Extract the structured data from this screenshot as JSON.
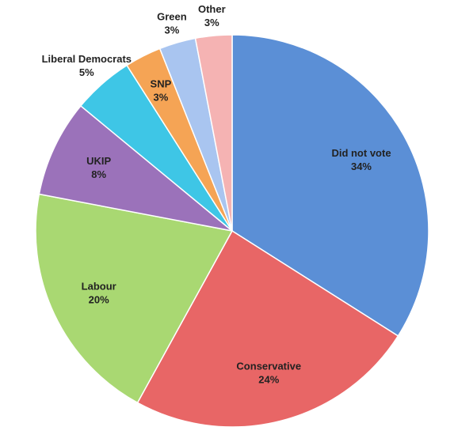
{
  "chart_data": {
    "type": "pie",
    "categories": [
      "Did not vote",
      "Conservative",
      "Labour",
      "UKIP",
      "Liberal Democrats",
      "SNP",
      "Green",
      "Other"
    ],
    "values": [
      34,
      24,
      20,
      8,
      5,
      3,
      3,
      3
    ],
    "value_labels": [
      "34%",
      "24%",
      "20%",
      "8%",
      "5%",
      "3%",
      "3%",
      "3%"
    ],
    "colors": [
      "#5b8fd6",
      "#e86666",
      "#a9d872",
      "#9b72ba",
      "#3ec6e6",
      "#f5a455",
      "#a9c5f0",
      "#f5b3b3"
    ]
  }
}
